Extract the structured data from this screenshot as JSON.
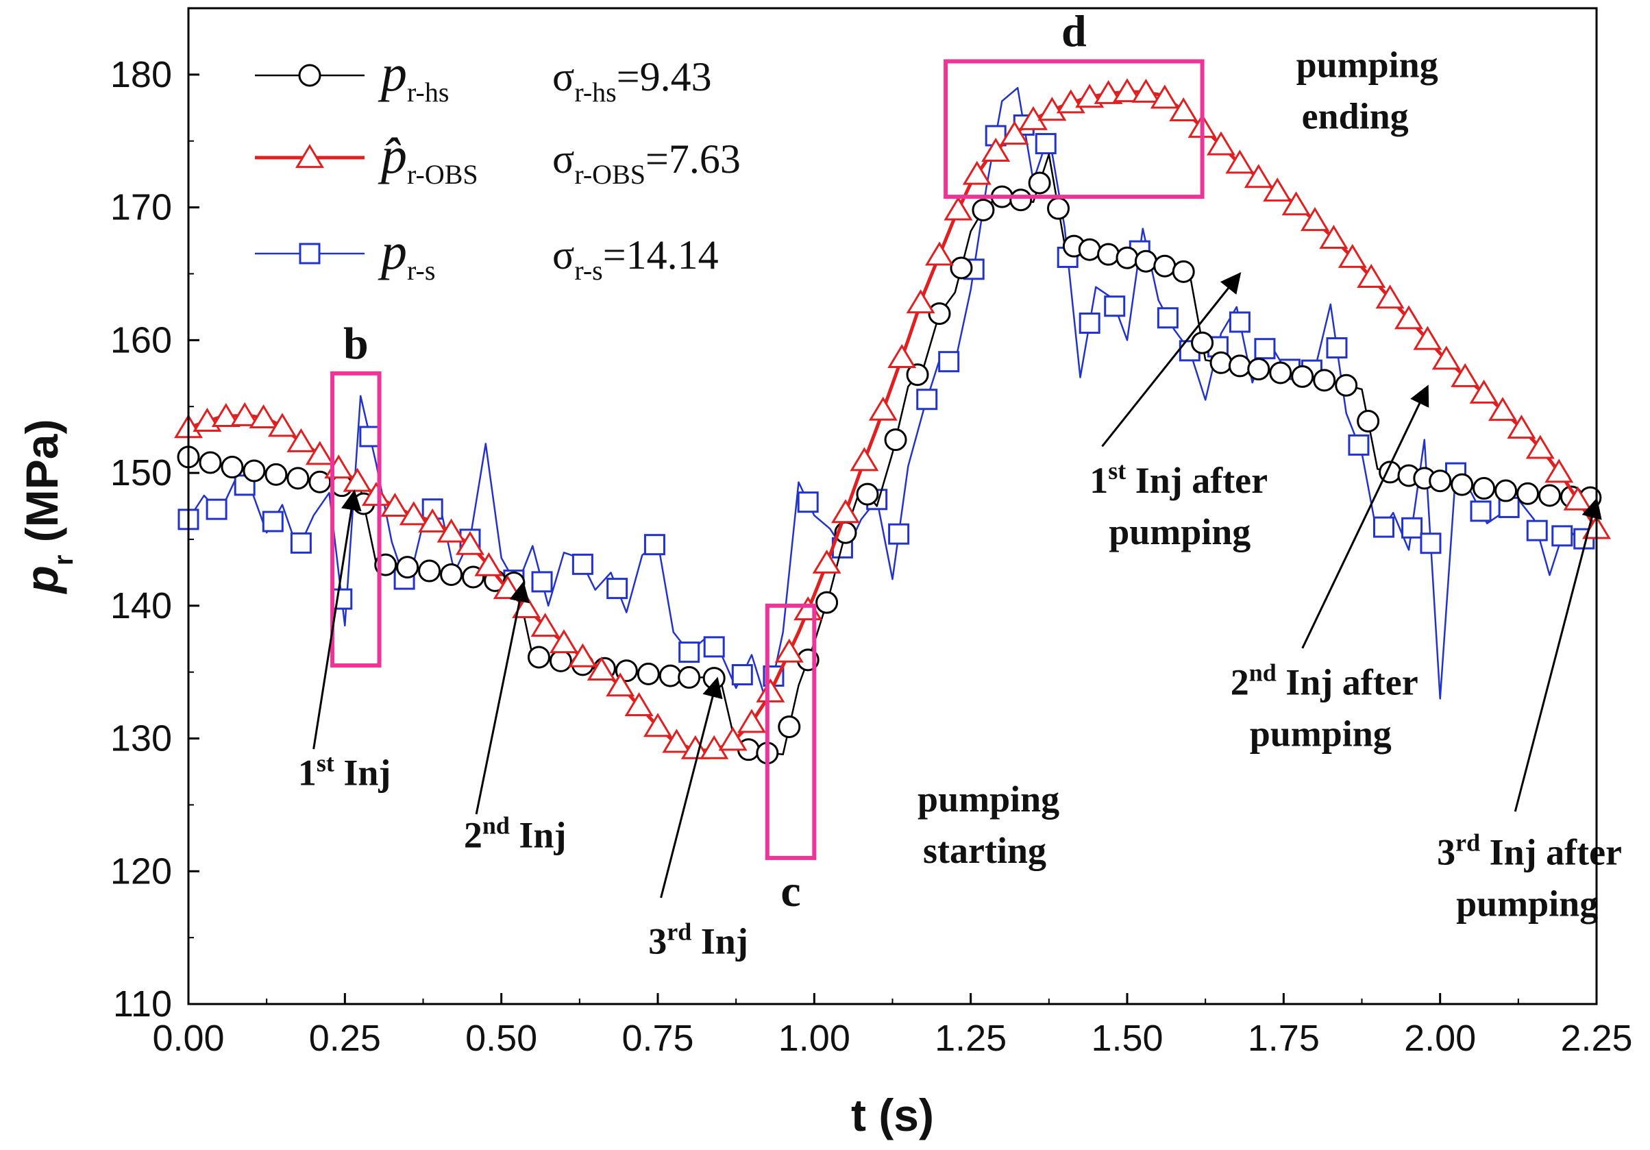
{
  "chart_data": {
    "type": "line",
    "title": "",
    "xlabel": "t (s)",
    "ylabel": "p_r (MPa)",
    "ylabel_main": "p",
    "ylabel_sub": "r",
    "ylabel_unit": "(MPa)",
    "xlim": [
      0,
      2.25
    ],
    "ylim": [
      110,
      185
    ],
    "x_ticks": [
      0,
      0.25,
      0.5,
      0.75,
      1.0,
      1.25,
      1.5,
      1.75,
      2.0,
      2.25
    ],
    "x_tick_labels": [
      "0.00",
      "0.25",
      "0.50",
      "0.75",
      "1.00",
      "1.25",
      "1.50",
      "1.75",
      "2.00",
      "2.25"
    ],
    "y_ticks": [
      110,
      120,
      130,
      140,
      150,
      160,
      170,
      180
    ],
    "y_tick_labels": [
      "110",
      "120",
      "130",
      "140",
      "150",
      "160",
      "170",
      "180"
    ],
    "grid": false,
    "legend_position": "top-left",
    "series": [
      {
        "name": "p_r-hs",
        "legend_symbol": "p",
        "legend_sub": "r-hs",
        "legend_stat_symbol": "σ",
        "legend_stat_sub": "r-hs",
        "legend_stat_value": "=9.43",
        "color": "#000000",
        "marker": "circle",
        "x": [
          0.0,
          0.025,
          0.05,
          0.075,
          0.1,
          0.125,
          0.15,
          0.175,
          0.2,
          0.225,
          0.25,
          0.275,
          0.3,
          0.325,
          0.35,
          0.375,
          0.4,
          0.425,
          0.45,
          0.475,
          0.5,
          0.525,
          0.55,
          0.575,
          0.6,
          0.625,
          0.65,
          0.675,
          0.7,
          0.725,
          0.75,
          0.775,
          0.8,
          0.825,
          0.85,
          0.875,
          0.9,
          0.925,
          0.95,
          0.975,
          1.0,
          1.025,
          1.05,
          1.075,
          1.1,
          1.125,
          1.15,
          1.175,
          1.2,
          1.225,
          1.25,
          1.275,
          1.3,
          1.325,
          1.35,
          1.375,
          1.4,
          1.425,
          1.45,
          1.475,
          1.5,
          1.525,
          1.55,
          1.575,
          1.6,
          1.625,
          1.65,
          1.675,
          1.7,
          1.725,
          1.75,
          1.775,
          1.8,
          1.825,
          1.85,
          1.875,
          1.9,
          1.925,
          1.95,
          1.975,
          2.0,
          2.025,
          2.05,
          2.075,
          2.1,
          2.125,
          2.15,
          2.175,
          2.2,
          2.225,
          2.25
        ],
        "y": [
          151.2,
          150.9,
          150.6,
          150.4,
          150.2,
          150.0,
          149.8,
          149.6,
          149.4,
          149.2,
          149.0,
          148.8,
          143.2,
          143.0,
          142.9,
          142.7,
          142.5,
          142.3,
          142.2,
          142.0,
          141.8,
          141.7,
          136.2,
          136.0,
          135.8,
          135.6,
          135.4,
          135.2,
          135.1,
          134.9,
          134.8,
          134.7,
          134.6,
          134.6,
          134.5,
          129.4,
          129.1,
          128.9,
          128.8,
          134.0,
          137.2,
          141.0,
          145.5,
          149.0,
          147.5,
          151.5,
          156.5,
          158.0,
          162.0,
          163.6,
          168.2,
          170.2,
          170.8,
          170.6,
          170.4,
          174.0,
          167.2,
          167.0,
          166.7,
          166.4,
          166.2,
          166.0,
          165.7,
          165.4,
          165.0,
          158.5,
          158.3,
          158.1,
          157.9,
          157.7,
          157.5,
          157.3,
          157.1,
          156.9,
          156.6,
          156.3,
          150.3,
          150.0,
          149.8,
          149.6,
          149.4,
          149.2,
          149.0,
          148.8,
          148.7,
          148.5,
          148.4,
          148.3,
          148.2,
          148.2,
          148.1
        ],
        "marker_x": [
          0.0,
          0.035,
          0.07,
          0.105,
          0.14,
          0.175,
          0.21,
          0.245,
          0.28,
          0.315,
          0.35,
          0.385,
          0.42,
          0.455,
          0.49,
          0.52,
          0.56,
          0.595,
          0.63,
          0.665,
          0.7,
          0.735,
          0.77,
          0.8,
          0.84,
          0.895,
          0.925,
          0.96,
          0.99,
          1.02,
          1.05,
          1.085,
          1.13,
          1.165,
          1.2,
          1.235,
          1.27,
          1.3,
          1.33,
          1.36,
          1.39,
          1.415,
          1.44,
          1.47,
          1.5,
          1.53,
          1.56,
          1.59,
          1.62,
          1.65,
          1.68,
          1.71,
          1.745,
          1.78,
          1.815,
          1.85,
          1.885,
          1.92,
          1.95,
          1.975,
          2.0,
          2.035,
          2.07,
          2.105,
          2.14,
          2.175,
          2.21,
          2.24
        ]
      },
      {
        "name": "p̂_r-OBS",
        "legend_symbol": "p̂",
        "legend_sub": "r-OBS",
        "legend_stat_symbol": "σ",
        "legend_stat_sub": "r-OBS",
        "legend_stat_value": "=7.63",
        "color": "#e02020",
        "marker": "triangle",
        "x": [
          0.0,
          0.025,
          0.05,
          0.075,
          0.1,
          0.125,
          0.15,
          0.175,
          0.2,
          0.225,
          0.25,
          0.275,
          0.3,
          0.325,
          0.35,
          0.375,
          0.4,
          0.425,
          0.45,
          0.475,
          0.5,
          0.525,
          0.55,
          0.575,
          0.6,
          0.625,
          0.65,
          0.675,
          0.7,
          0.725,
          0.75,
          0.775,
          0.8,
          0.825,
          0.85,
          0.875,
          0.9,
          0.925,
          0.95,
          0.975,
          1.0,
          1.025,
          1.05,
          1.075,
          1.1,
          1.125,
          1.15,
          1.175,
          1.2,
          1.225,
          1.25,
          1.275,
          1.3,
          1.325,
          1.35,
          1.375,
          1.4,
          1.425,
          1.45,
          1.475,
          1.5,
          1.525,
          1.55,
          1.575,
          1.6,
          1.625,
          1.65,
          1.675,
          1.7,
          1.725,
          1.75,
          1.775,
          1.8,
          1.825,
          1.85,
          1.875,
          1.9,
          1.925,
          1.95,
          1.975,
          2.0,
          2.025,
          2.05,
          2.075,
          2.1,
          2.125,
          2.15,
          2.175,
          2.2,
          2.225,
          2.25
        ],
        "y": [
          153.4,
          153.8,
          154.2,
          154.3,
          154.3,
          154.1,
          153.5,
          152.5,
          151.7,
          150.9,
          150.0,
          149.2,
          148.3,
          147.6,
          147.0,
          146.6,
          146.1,
          145.4,
          144.6,
          143.3,
          141.8,
          140.5,
          139.4,
          138.2,
          137.2,
          136.3,
          135.5,
          134.6,
          133.5,
          132.2,
          130.9,
          129.8,
          129.3,
          129.1,
          129.3,
          130.0,
          131.2,
          133.0,
          135.5,
          138.0,
          140.8,
          143.8,
          147.0,
          150.3,
          153.4,
          156.7,
          160.0,
          163.5,
          166.4,
          169.3,
          171.8,
          173.5,
          174.7,
          175.7,
          176.6,
          177.2,
          177.7,
          178.1,
          178.4,
          178.6,
          178.7,
          178.7,
          178.5,
          177.8,
          176.9,
          175.8,
          174.7,
          173.5,
          172.6,
          171.7,
          170.9,
          170.0,
          169.0,
          167.9,
          166.7,
          165.5,
          164.2,
          162.9,
          161.6,
          160.3,
          159.0,
          157.9,
          156.8,
          155.8,
          154.7,
          153.6,
          152.4,
          151.0,
          149.4,
          147.6,
          145.8
        ],
        "marker_x": [
          0.0,
          0.03,
          0.06,
          0.09,
          0.12,
          0.15,
          0.18,
          0.21,
          0.24,
          0.27,
          0.3,
          0.33,
          0.36,
          0.39,
          0.42,
          0.45,
          0.48,
          0.51,
          0.54,
          0.57,
          0.6,
          0.63,
          0.66,
          0.69,
          0.72,
          0.75,
          0.78,
          0.81,
          0.84,
          0.87,
          0.9,
          0.93,
          0.96,
          0.99,
          1.02,
          1.05,
          1.08,
          1.11,
          1.14,
          1.17,
          1.2,
          1.23,
          1.26,
          1.29,
          1.32,
          1.35,
          1.38,
          1.41,
          1.44,
          1.47,
          1.5,
          1.53,
          1.56,
          1.59,
          1.62,
          1.65,
          1.68,
          1.71,
          1.74,
          1.77,
          1.8,
          1.83,
          1.86,
          1.89,
          1.92,
          1.95,
          1.98,
          2.01,
          2.04,
          2.07,
          2.1,
          2.13,
          2.16,
          2.19,
          2.22,
          2.25
        ]
      },
      {
        "name": "p_r-s",
        "legend_symbol": "p",
        "legend_sub": "r-s",
        "legend_stat_symbol": "σ",
        "legend_stat_sub": "r-s",
        "legend_stat_value": "=14.14",
        "color": "#2233cc",
        "marker": "square",
        "x": [
          0.0,
          0.025,
          0.05,
          0.075,
          0.1,
          0.125,
          0.15,
          0.175,
          0.2,
          0.225,
          0.25,
          0.275,
          0.3,
          0.325,
          0.35,
          0.375,
          0.4,
          0.425,
          0.45,
          0.475,
          0.5,
          0.525,
          0.55,
          0.575,
          0.6,
          0.625,
          0.65,
          0.675,
          0.7,
          0.725,
          0.75,
          0.775,
          0.8,
          0.825,
          0.85,
          0.875,
          0.9,
          0.925,
          0.95,
          0.975,
          1.0,
          1.025,
          1.05,
          1.075,
          1.1,
          1.125,
          1.15,
          1.175,
          1.2,
          1.225,
          1.25,
          1.275,
          1.3,
          1.325,
          1.35,
          1.375,
          1.4,
          1.425,
          1.45,
          1.475,
          1.5,
          1.525,
          1.55,
          1.575,
          1.6,
          1.625,
          1.65,
          1.675,
          1.7,
          1.725,
          1.75,
          1.775,
          1.8,
          1.825,
          1.85,
          1.875,
          1.9,
          1.925,
          1.95,
          1.975,
          2.0,
          2.025,
          2.05,
          2.075,
          2.1,
          2.125,
          2.15,
          2.175,
          2.2,
          2.225,
          2.25
        ],
        "y": [
          146.5,
          148.3,
          147.0,
          149.5,
          148.8,
          145.5,
          147.6,
          144.2,
          146.8,
          148.5,
          138.5,
          155.8,
          150.7,
          144.8,
          141.3,
          146.2,
          148.0,
          142.5,
          145.0,
          152.2,
          143.6,
          141.5,
          144.5,
          140.0,
          144.0,
          143.6,
          141.2,
          142.5,
          139.5,
          143.8,
          144.8,
          138.0,
          136.5,
          137.5,
          136.5,
          133.8,
          136.3,
          132.5,
          138.0,
          149.3,
          146.8,
          145.8,
          144.0,
          146.5,
          148.0,
          142.0,
          150.5,
          154.8,
          158.5,
          158.3,
          163.8,
          171.5,
          178.0,
          179.0,
          172.0,
          175.5,
          168.5,
          157.2,
          164.0,
          163.2,
          160.0,
          168.4,
          163.0,
          160.8,
          159.2,
          155.5,
          160.5,
          162.5,
          156.8,
          160.0,
          158.0,
          157.5,
          157.8,
          162.7,
          154.5,
          151.5,
          145.2,
          147.0,
          144.2,
          152.5,
          133.0,
          150.0,
          148.5,
          146.2,
          147.0,
          148.0,
          146.5,
          142.3,
          146.0,
          144.8,
          146.0
        ],
        "marker_x": [
          0.0,
          0.045,
          0.09,
          0.135,
          0.18,
          0.245,
          0.29,
          0.345,
          0.39,
          0.45,
          0.52,
          0.565,
          0.63,
          0.685,
          0.745,
          0.8,
          0.84,
          0.885,
          0.935,
          0.99,
          1.045,
          1.1,
          1.135,
          1.18,
          1.215,
          1.255,
          1.29,
          1.335,
          1.37,
          1.405,
          1.44,
          1.48,
          1.52,
          1.565,
          1.6,
          1.645,
          1.68,
          1.72,
          1.76,
          1.795,
          1.835,
          1.87,
          1.91,
          1.955,
          1.985,
          2.025,
          2.065,
          2.11,
          2.155,
          2.195,
          2.23
        ]
      }
    ],
    "highlight_boxes": [
      {
        "label": "b",
        "x0": 0.23,
        "x1": 0.305,
        "y0": 135.5,
        "y1": 157.5,
        "label_side": "top"
      },
      {
        "label": "c",
        "x0": 0.925,
        "x1": 1.0,
        "y0": 121.0,
        "y1": 140.0,
        "label_side": "bottom"
      },
      {
        "label": "d",
        "x0": 1.21,
        "x1": 1.62,
        "y0": 170.8,
        "y1": 181.0,
        "label_side": "top"
      }
    ],
    "box_color": "#ee3399",
    "annotations": [
      {
        "id": "inj1",
        "sup": "st",
        "line1_pre": "1",
        "line1_post": " Inj",
        "line2": "",
        "text_x": 0.175,
        "text_y": 126.5,
        "arrow_from": [
          0.2,
          129.2
        ],
        "arrow_to": [
          0.265,
          148.6
        ]
      },
      {
        "id": "inj2",
        "sup": "nd",
        "line1_pre": "2",
        "line1_post": " Inj",
        "line2": "",
        "text_x": 0.44,
        "text_y": 121.8,
        "arrow_from": [
          0.46,
          124.3
        ],
        "arrow_to": [
          0.535,
          141.7
        ]
      },
      {
        "id": "inj3",
        "sup": "rd",
        "line1_pre": "3",
        "line1_post": " Inj",
        "line2": "",
        "text_x": 0.735,
        "text_y": 113.8,
        "arrow_from": [
          0.755,
          118.0
        ],
        "arrow_to": [
          0.845,
          134.5
        ]
      },
      {
        "id": "inj1ap",
        "sup": "st",
        "line1_pre": "1",
        "line1_post": " Inj after",
        "line2": "pumping",
        "text_x": 1.44,
        "text_y": 148.5,
        "arrow_from": [
          1.46,
          152.0
        ],
        "arrow_to": [
          1.68,
          165.0
        ]
      },
      {
        "id": "inj2ap",
        "sup": "nd",
        "line1_pre": "2",
        "line1_post": " Inj after",
        "line2": "pumping",
        "text_x": 1.665,
        "text_y": 133.3,
        "arrow_from": [
          1.78,
          136.8
        ],
        "arrow_to": [
          1.98,
          156.5
        ]
      },
      {
        "id": "inj3ap",
        "sup": "rd",
        "line1_pre": "3",
        "line1_post": " Inj after",
        "line2": "pumping",
        "text_x": 1.995,
        "text_y": 120.5,
        "arrow_from": [
          2.12,
          124.5
        ],
        "arrow_to": [
          2.25,
          148.0
        ]
      }
    ],
    "text_notes": [
      {
        "id": "pumping-starting",
        "line1": "pumping",
        "line2": "starting",
        "text_x": 1.165,
        "text_y": 124.5
      },
      {
        "id": "pumping-ending",
        "line1": "pumping",
        "line2": "ending",
        "text_x": 1.77,
        "text_y": 179.8
      }
    ]
  }
}
